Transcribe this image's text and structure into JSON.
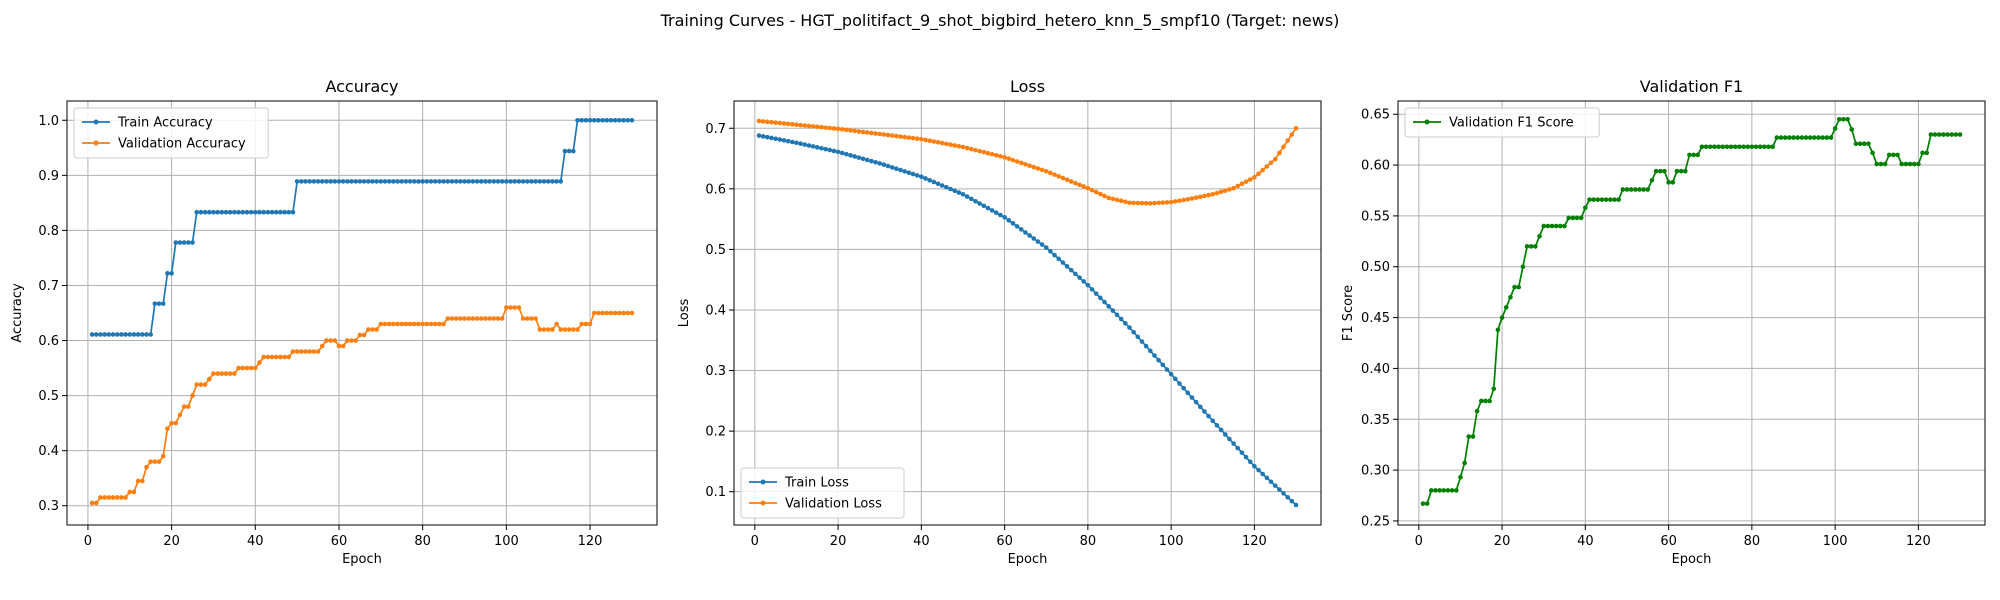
{
  "figure": {
    "title": "Training Curves - HGT_politifact_9_shot_bigbird_hetero_knn_5_smpf10 (Target: news)"
  },
  "colors": {
    "blue": "#1f77b4",
    "orange": "#ff7f0e",
    "green": "#008000",
    "grid": "#b0b0b0"
  },
  "chart_data": [
    {
      "type": "line",
      "title": "Accuracy",
      "xlabel": "Epoch",
      "ylabel": "Accuracy",
      "xlim": [
        -5,
        136
      ],
      "ylim": [
        0.265,
        1.035
      ],
      "xticks": [
        0,
        20,
        40,
        60,
        80,
        100,
        120
      ],
      "yticks": [
        0.3,
        0.4,
        0.5,
        0.6,
        0.7,
        0.8,
        0.9,
        1.0
      ],
      "ytick_labels": [
        "0.3",
        "0.4",
        "0.5",
        "0.6",
        "0.7",
        "0.8",
        "0.9",
        "1.0"
      ],
      "grid": true,
      "legend": "upper-left",
      "series": [
        {
          "name": "Train Accuracy",
          "color": "#1f77b4",
          "steps": [
            [
              1,
              0.611
            ],
            [
              16,
              0.667
            ],
            [
              19,
              0.722
            ],
            [
              21,
              0.778
            ],
            [
              26,
              0.833
            ],
            [
              50,
              0.889
            ],
            [
              114,
              0.944
            ],
            [
              117,
              1.0
            ],
            [
              130,
              1.0
            ]
          ]
        },
        {
          "name": "Validation Accuracy",
          "color": "#ff7f0e",
          "steps": [
            [
              1,
              0.305
            ],
            [
              3,
              0.315
            ],
            [
              10,
              0.325
            ],
            [
              12,
              0.345
            ],
            [
              14,
              0.37
            ],
            [
              15,
              0.38
            ],
            [
              18,
              0.39
            ],
            [
              19,
              0.44
            ],
            [
              20,
              0.45
            ],
            [
              22,
              0.465
            ],
            [
              23,
              0.48
            ],
            [
              25,
              0.5
            ],
            [
              26,
              0.52
            ],
            [
              29,
              0.53
            ],
            [
              30,
              0.54
            ],
            [
              36,
              0.55
            ],
            [
              41,
              0.56
            ],
            [
              42,
              0.57
            ],
            [
              49,
              0.58
            ],
            [
              56,
              0.59
            ],
            [
              57,
              0.6
            ],
            [
              60,
              0.59
            ],
            [
              62,
              0.6
            ],
            [
              65,
              0.61
            ],
            [
              67,
              0.62
            ],
            [
              70,
              0.63
            ],
            [
              86,
              0.64
            ],
            [
              100,
              0.66
            ],
            [
              104,
              0.64
            ],
            [
              108,
              0.62
            ],
            [
              112,
              0.63
            ],
            [
              113,
              0.62
            ],
            [
              118,
              0.63
            ],
            [
              121,
              0.65
            ],
            [
              130,
              0.65
            ]
          ]
        }
      ]
    },
    {
      "type": "line",
      "title": "Loss",
      "xlabel": "Epoch",
      "ylabel": "Loss",
      "xlim": [
        -5,
        136
      ],
      "ylim": [
        0.045,
        0.745
      ],
      "xticks": [
        0,
        20,
        40,
        60,
        80,
        100,
        120
      ],
      "yticks": [
        0.1,
        0.2,
        0.3,
        0.4,
        0.5,
        0.6,
        0.7
      ],
      "ytick_labels": [
        "0.1",
        "0.2",
        "0.3",
        "0.4",
        "0.5",
        "0.6",
        "0.7"
      ],
      "grid": true,
      "legend": "lower-left",
      "series": [
        {
          "name": "Train Loss",
          "color": "#1f77b4",
          "anchors": [
            [
              1,
              0.688
            ],
            [
              10,
              0.676
            ],
            [
              20,
              0.661
            ],
            [
              30,
              0.642
            ],
            [
              40,
              0.62
            ],
            [
              50,
              0.591
            ],
            [
              60,
              0.553
            ],
            [
              70,
              0.503
            ],
            [
              80,
              0.441
            ],
            [
              90,
              0.371
            ],
            [
              100,
              0.294
            ],
            [
              110,
              0.217
            ],
            [
              120,
              0.142
            ],
            [
              130,
              0.078
            ]
          ]
        },
        {
          "name": "Validation Loss",
          "color": "#ff7f0e",
          "anchors": [
            [
              1,
              0.712
            ],
            [
              20,
              0.699
            ],
            [
              40,
              0.682
            ],
            [
              50,
              0.669
            ],
            [
              60,
              0.652
            ],
            [
              70,
              0.629
            ],
            [
              80,
              0.601
            ],
            [
              85,
              0.585
            ],
            [
              90,
              0.577
            ],
            [
              95,
              0.576
            ],
            [
              100,
              0.578
            ],
            [
              105,
              0.584
            ],
            [
              110,
              0.591
            ],
            [
              115,
              0.601
            ],
            [
              120,
              0.619
            ],
            [
              125,
              0.649
            ],
            [
              130,
              0.7
            ]
          ]
        }
      ]
    },
    {
      "type": "line",
      "title": "Validation F1",
      "xlabel": "Epoch",
      "ylabel": "F1 Score",
      "xlim": [
        -5,
        136
      ],
      "ylim": [
        0.246,
        0.663
      ],
      "xticks": [
        0,
        20,
        40,
        60,
        80,
        100,
        120
      ],
      "yticks": [
        0.25,
        0.3,
        0.35,
        0.4,
        0.45,
        0.5,
        0.55,
        0.6,
        0.65
      ],
      "ytick_labels": [
        "0.25",
        "0.30",
        "0.35",
        "0.40",
        "0.45",
        "0.50",
        "0.55",
        "0.60",
        "0.65"
      ],
      "grid": true,
      "legend": "upper-left",
      "series": [
        {
          "name": "Validation F1 Score",
          "color": "#008000",
          "steps": [
            [
              1,
              0.267
            ],
            [
              3,
              0.28
            ],
            [
              10,
              0.293
            ],
            [
              11,
              0.307
            ],
            [
              12,
              0.333
            ],
            [
              14,
              0.358
            ],
            [
              15,
              0.368
            ],
            [
              18,
              0.38
            ],
            [
              19,
              0.438
            ],
            [
              20,
              0.45
            ],
            [
              21,
              0.46
            ],
            [
              22,
              0.47
            ],
            [
              23,
              0.48
            ],
            [
              25,
              0.5
            ],
            [
              26,
              0.52
            ],
            [
              29,
              0.53
            ],
            [
              30,
              0.54
            ],
            [
              36,
              0.548
            ],
            [
              40,
              0.558
            ],
            [
              41,
              0.566
            ],
            [
              49,
              0.576
            ],
            [
              56,
              0.585
            ],
            [
              57,
              0.594
            ],
            [
              60,
              0.583
            ],
            [
              62,
              0.594
            ],
            [
              65,
              0.61
            ],
            [
              68,
              0.618
            ],
            [
              86,
              0.627
            ],
            [
              100,
              0.636
            ],
            [
              101,
              0.645
            ],
            [
              104,
              0.635
            ],
            [
              105,
              0.621
            ],
            [
              109,
              0.612
            ],
            [
              110,
              0.601
            ],
            [
              113,
              0.61
            ],
            [
              116,
              0.601
            ],
            [
              121,
              0.612
            ],
            [
              123,
              0.63
            ],
            [
              130,
              0.63
            ]
          ]
        }
      ]
    }
  ]
}
